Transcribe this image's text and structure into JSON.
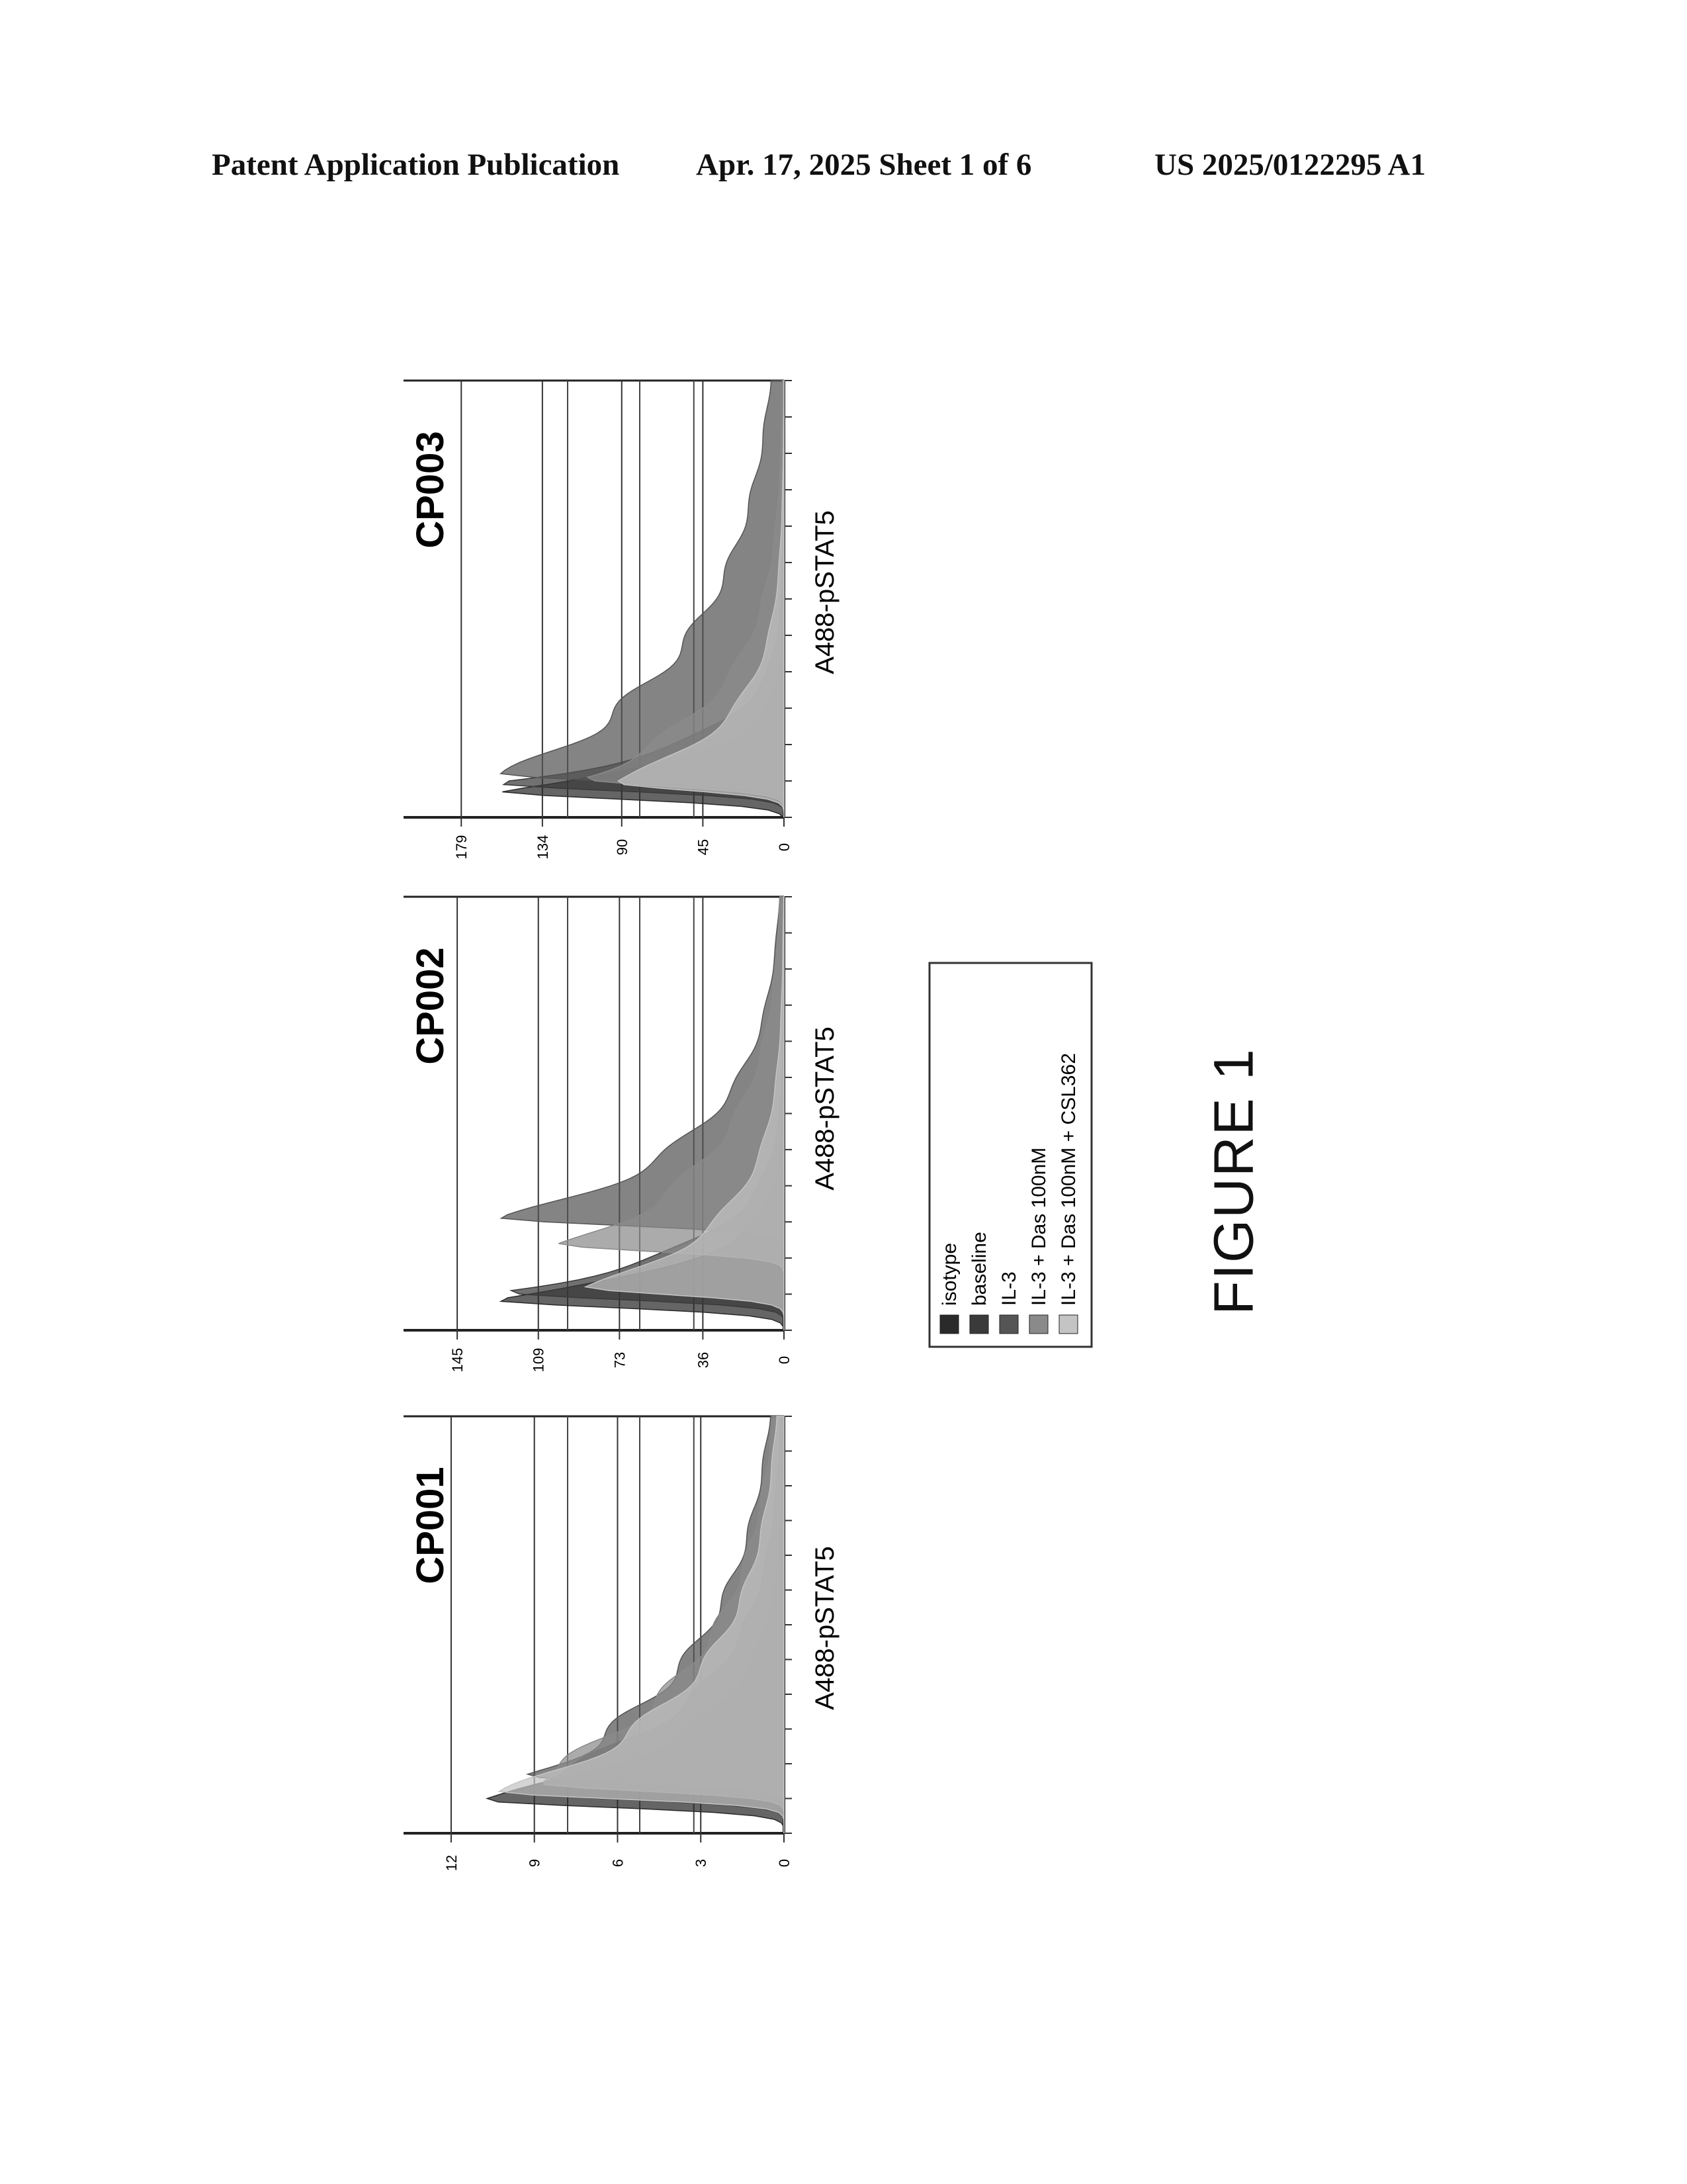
{
  "header": {
    "publication": "Patent Application Publication",
    "date_sheet": "Apr. 17, 2025  Sheet 1 of 6",
    "number": "US 2025/0122295 A1"
  },
  "figure_label": "FIGURE 1",
  "legend": {
    "items": [
      {
        "label": "isotype",
        "color": "#2a2a2a"
      },
      {
        "label": "baseline",
        "color": "#3a3a3a"
      },
      {
        "label": "IL-3",
        "color": "#555555"
      },
      {
        "label": "IL-3 + Das 100nM",
        "color": "#8a8a8a"
      },
      {
        "label": "IL-3 + Das 100nM + CSL362",
        "color": "#c4c4c4"
      }
    ]
  },
  "chart_data": [
    {
      "type": "area",
      "title": "CP001",
      "xlabel": "A488-pSTAT5",
      "ylabel": "",
      "y_ticks": [
        "0",
        "3",
        "6",
        "9",
        "12"
      ],
      "ylim": [
        0,
        13
      ],
      "series": [
        {
          "name": "isotype",
          "peak_position": 0.08,
          "peak_height": 11.5,
          "spread": 0.15
        },
        {
          "name": "baseline",
          "peak_position": 0.1,
          "peak_height": 11.0,
          "spread": 0.2
        },
        {
          "name": "IL-3",
          "peak_position": 0.14,
          "peak_height": 9.5,
          "spread": 0.3
        },
        {
          "name": "IL-3 + Das 100nM",
          "peak_position": 0.12,
          "peak_height": 10.0,
          "spread": 0.28
        },
        {
          "name": "IL-3 + Das 100nM + CSL362",
          "peak_position": 0.1,
          "peak_height": 10.5,
          "spread": 0.25
        }
      ]
    },
    {
      "type": "area",
      "title": "CP002",
      "xlabel": "A488-pSTAT5",
      "ylabel": "",
      "y_ticks": [
        "0",
        "36",
        "73",
        "109",
        "145"
      ],
      "ylim": [
        0,
        160
      ],
      "series": [
        {
          "name": "isotype",
          "peak_position": 0.07,
          "peak_height": 140,
          "spread": 0.08
        },
        {
          "name": "baseline",
          "peak_position": 0.09,
          "peak_height": 135,
          "spread": 0.1
        },
        {
          "name": "IL-3",
          "peak_position": 0.26,
          "peak_height": 128,
          "spread": 0.18
        },
        {
          "name": "IL-3 + Das 100nM",
          "peak_position": 0.2,
          "peak_height": 100,
          "spread": 0.2
        },
        {
          "name": "IL-3 + Das 100nM + CSL362",
          "peak_position": 0.1,
          "peak_height": 90,
          "spread": 0.15
        }
      ]
    },
    {
      "type": "area",
      "title": "CP003",
      "xlabel": "A488-pSTAT5",
      "ylabel": "",
      "y_ticks": [
        "0",
        "45",
        "90",
        "134",
        "179"
      ],
      "ylim": [
        0,
        200
      ],
      "series": [
        {
          "name": "isotype",
          "peak_position": 0.06,
          "peak_height": 175,
          "spread": 0.07
        },
        {
          "name": "baseline",
          "peak_position": 0.08,
          "peak_height": 170,
          "spread": 0.09
        },
        {
          "name": "IL-3",
          "peak_position": 0.1,
          "peak_height": 160,
          "spread": 0.3
        },
        {
          "name": "IL-3 + Das 100nM",
          "peak_position": 0.09,
          "peak_height": 120,
          "spread": 0.18
        },
        {
          "name": "IL-3 + Das 100nM + CSL362",
          "peak_position": 0.08,
          "peak_height": 100,
          "spread": 0.14
        }
      ]
    }
  ]
}
